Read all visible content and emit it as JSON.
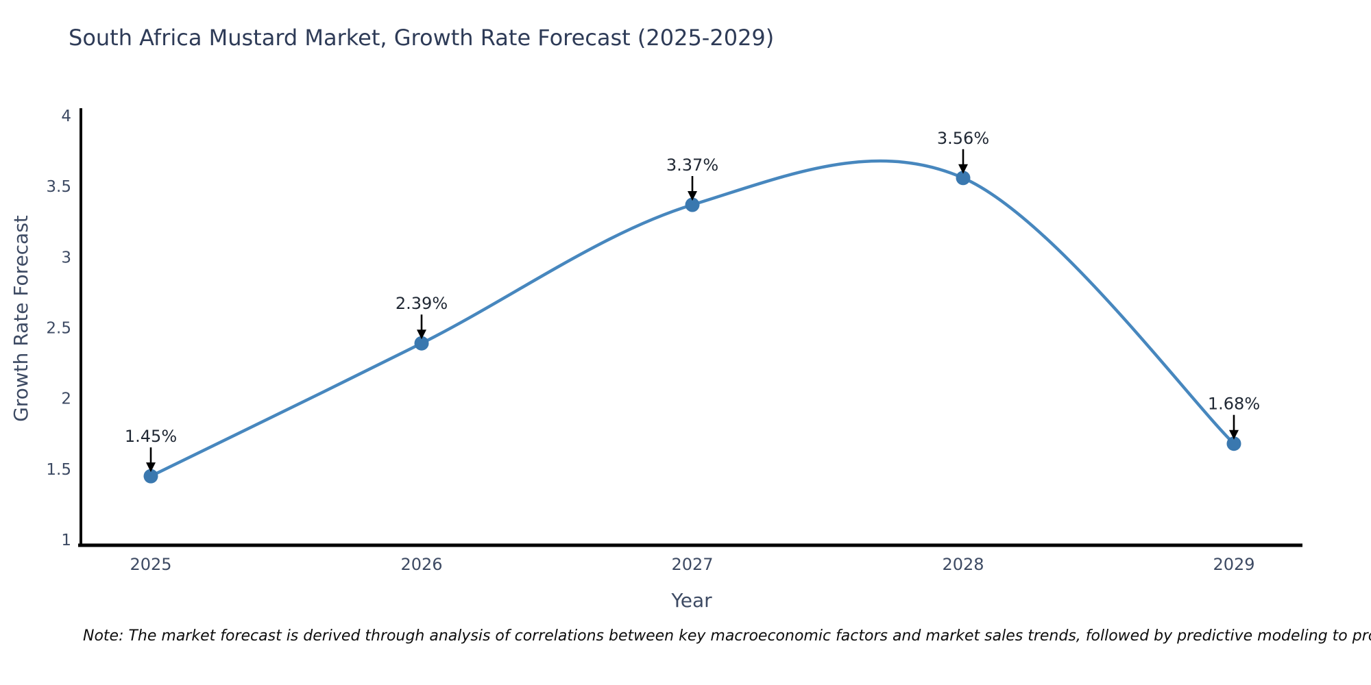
{
  "title": "South Africa Mustard Market, Growth Rate Forecast (2025-2029)",
  "note": "Note: The market forecast is derived through analysis of correlations between key macroeconomic factors and market sales trends, followed by predictive modeling to project future sales",
  "chart_data": {
    "type": "line",
    "title": "South Africa Mustard Market, Growth Rate Forecast (2025-2029)",
    "xlabel": "Year",
    "ylabel": "Growth Rate Forecast",
    "categories": [
      "2025",
      "2026",
      "2027",
      "2028",
      "2029"
    ],
    "values": [
      1.45,
      2.39,
      3.37,
      3.56,
      1.68
    ],
    "point_labels": [
      "1.45%",
      "2.39%",
      "3.37%",
      "3.56%",
      "1.68%"
    ],
    "ylim": [
      1,
      4
    ],
    "yticks": [
      1,
      1.5,
      2,
      2.5,
      3,
      3.5,
      4
    ],
    "ytick_labels": [
      "1",
      "1.5",
      "2",
      "2.5",
      "3",
      "3.5",
      "4"
    ],
    "grid": false,
    "legend": "none",
    "smooth": true,
    "colors": {
      "line": "#4787be",
      "marker": "#3a78af",
      "axis": "#000000",
      "title_text": "#2e3b57",
      "tick_text": "#3d4a63",
      "annotation_text": "#1f2733",
      "arrow": "#000000",
      "background": "#ffffff"
    }
  }
}
